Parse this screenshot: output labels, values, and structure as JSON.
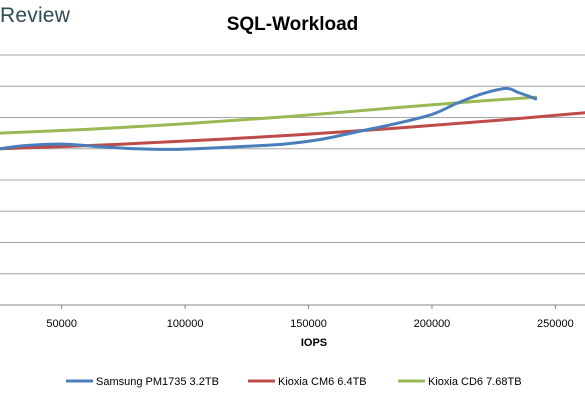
{
  "brand": "Review",
  "chart_data": {
    "type": "line",
    "title": "SQL-Workload",
    "xlabel": "IOPS",
    "ylabel": "",
    "xlim": [
      25000,
      262000
    ],
    "ylim": [
      0,
      8
    ],
    "xticks": [
      50000,
      100000,
      150000,
      200000,
      250000
    ],
    "grid": true,
    "legend_position": "bottom",
    "series": [
      {
        "name": "Samsung PM1735 3.2TB",
        "color": "#4a7ebb",
        "x": [
          25000,
          35000,
          50000,
          65000,
          80000,
          95000,
          110000,
          125000,
          140000,
          155000,
          170000,
          185000,
          200000,
          210000,
          220000,
          230000,
          235000,
          242000
        ],
        "y": [
          5.0,
          5.1,
          5.15,
          5.07,
          5.0,
          4.98,
          5.02,
          5.08,
          5.15,
          5.3,
          5.55,
          5.8,
          6.1,
          6.45,
          6.75,
          6.93,
          6.8,
          6.6
        ]
      },
      {
        "name": "Kioxia CM6 6.4TB",
        "color": "#be4b48",
        "x": [
          25000,
          75000,
          125000,
          175000,
          225000,
          262000
        ],
        "y": [
          5.0,
          5.15,
          5.35,
          5.6,
          5.9,
          6.15
        ]
      },
      {
        "name": "Kioxia CD6 7.68TB",
        "color": "#98b954",
        "x": [
          25000,
          60000,
          100000,
          140000,
          180000,
          215000,
          242000
        ],
        "y": [
          5.5,
          5.62,
          5.8,
          6.02,
          6.28,
          6.5,
          6.65
        ]
      }
    ]
  }
}
